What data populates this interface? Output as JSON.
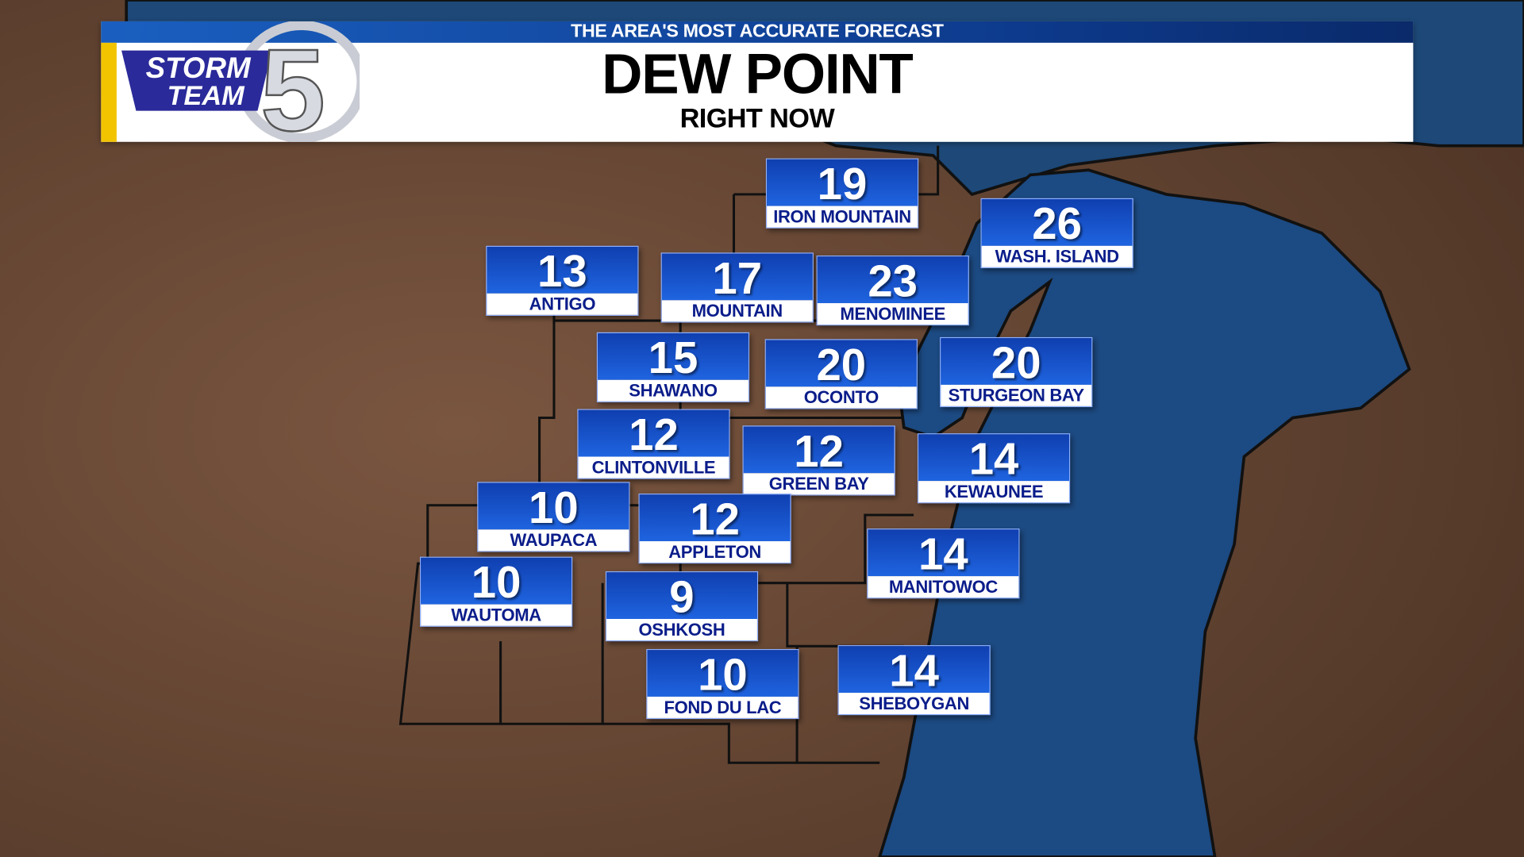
{
  "header": {
    "tagline": "THE AREA'S MOST ACCURATE FORECAST",
    "title": "DEW POINT",
    "subtitle": "RIGHT NOW",
    "logo_text": "STORM TEAM 5"
  },
  "colors": {
    "land": "#6b4a35",
    "water": "#1c4a82",
    "label_blue": "#1a55d0",
    "accent_yellow": "#f2c400"
  },
  "stations": [
    {
      "name": "IRON MOUNTAIN",
      "value": "19"
    },
    {
      "name": "WASH. ISLAND",
      "value": "26"
    },
    {
      "name": "ANTIGO",
      "value": "13"
    },
    {
      "name": "MOUNTAIN",
      "value": "17"
    },
    {
      "name": "MENOMINEE",
      "value": "23"
    },
    {
      "name": "SHAWANO",
      "value": "15"
    },
    {
      "name": "OCONTO",
      "value": "20"
    },
    {
      "name": "STURGEON BAY",
      "value": "20"
    },
    {
      "name": "CLINTONVILLE",
      "value": "12"
    },
    {
      "name": "GREEN BAY",
      "value": "12"
    },
    {
      "name": "KEWAUNEE",
      "value": "14"
    },
    {
      "name": "WAUPACA",
      "value": "10"
    },
    {
      "name": "APPLETON",
      "value": "12"
    },
    {
      "name": "MANITOWOC",
      "value": "14"
    },
    {
      "name": "WAUTOMA",
      "value": "10"
    },
    {
      "name": "OSHKOSH",
      "value": "9"
    },
    {
      "name": "FOND DU LAC",
      "value": "10"
    },
    {
      "name": "SHEBOYGAN",
      "value": "14"
    }
  ]
}
